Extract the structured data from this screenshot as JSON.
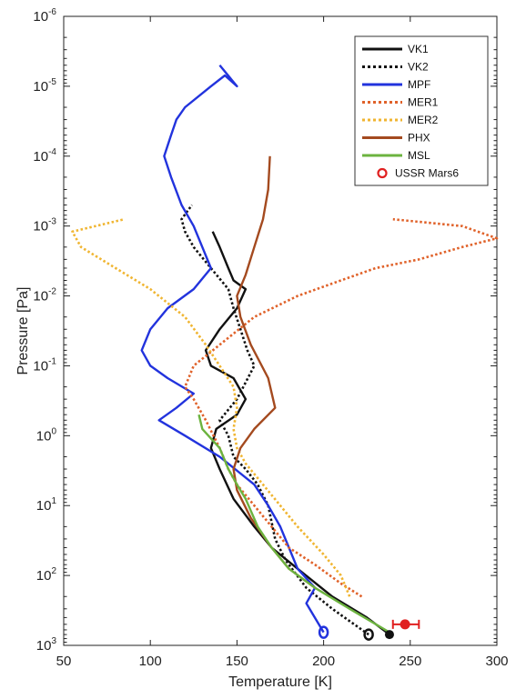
{
  "chart_data": {
    "type": "line",
    "title": "",
    "xlabel": "Temperature [K]",
    "ylabel": "Pressure [Pa]",
    "xlim": [
      50,
      300
    ],
    "ylim": [
      1e-06,
      1000.0
    ],
    "y_scale": "log",
    "y_reversed": true,
    "x_ticks": [
      "50",
      "100",
      "150",
      "200",
      "250",
      "300"
    ],
    "y_ticks": [
      {
        "base": "10",
        "exp": "-6"
      },
      {
        "base": "10",
        "exp": "-5"
      },
      {
        "base": "10",
        "exp": "-4"
      },
      {
        "base": "10",
        "exp": "-3"
      },
      {
        "base": "10",
        "exp": "-2"
      },
      {
        "base": "10",
        "exp": "-1"
      },
      {
        "base": "10",
        "exp": "0"
      },
      {
        "base": "10",
        "exp": "1"
      },
      {
        "base": "10",
        "exp": "2"
      },
      {
        "base": "10",
        "exp": "3"
      }
    ],
    "grid": false,
    "legend_position": "top-right",
    "series": [
      {
        "name": "VK1",
        "color": "#111111",
        "style": "solid",
        "points": [
          [
            238,
            700
          ],
          [
            225,
            400
          ],
          [
            205,
            200
          ],
          [
            185,
            80
          ],
          [
            170,
            40
          ],
          [
            160,
            20
          ],
          [
            148,
            8
          ],
          [
            140,
            3
          ],
          [
            135,
            1.5
          ],
          [
            138,
            0.8
          ],
          [
            150,
            0.5
          ],
          [
            155,
            0.3
          ],
          [
            148,
            0.15
          ],
          [
            135,
            0.1
          ],
          [
            132,
            0.06
          ],
          [
            140,
            0.03
          ],
          [
            150,
            0.015
          ],
          [
            155,
            0.008
          ],
          [
            148,
            0.006
          ],
          [
            145,
            0.004
          ],
          [
            140,
            0.002
          ],
          [
            136,
            0.0012
          ]
        ],
        "surface_point": [
          238,
          700
        ]
      },
      {
        "name": "VK2",
        "color": "#111111",
        "style": "dotted",
        "points": [
          [
            226,
            700
          ],
          [
            205,
            300
          ],
          [
            190,
            150
          ],
          [
            178,
            60
          ],
          [
            172,
            30
          ],
          [
            168,
            10
          ],
          [
            162,
            5
          ],
          [
            155,
            3
          ],
          [
            148,
            2
          ],
          [
            145,
            1
          ],
          [
            140,
            0.6
          ],
          [
            150,
            0.3
          ],
          [
            160,
            0.1
          ],
          [
            156,
            0.06
          ],
          [
            152,
            0.03
          ],
          [
            148,
            0.015
          ],
          [
            145,
            0.008
          ],
          [
            135,
            0.004
          ],
          [
            125,
            0.002
          ],
          [
            120,
            0.0012
          ],
          [
            118,
            0.0008
          ],
          [
            124,
            0.0005
          ]
        ],
        "surface_point": [
          226,
          700
        ]
      },
      {
        "name": "MPF",
        "color": "#2233dd",
        "style": "solid",
        "points": [
          [
            200,
            650
          ],
          [
            190,
            250
          ],
          [
            195,
            150
          ],
          [
            185,
            80
          ],
          [
            180,
            40
          ],
          [
            175,
            20
          ],
          [
            168,
            10
          ],
          [
            160,
            5
          ],
          [
            140,
            2
          ],
          [
            120,
            1
          ],
          [
            105,
            0.6
          ],
          [
            115,
            0.4
          ],
          [
            125,
            0.25
          ],
          [
            110,
            0.15
          ],
          [
            100,
            0.1
          ],
          [
            95,
            0.06
          ],
          [
            100,
            0.03
          ],
          [
            110,
            0.015
          ],
          [
            125,
            0.008
          ],
          [
            135,
            0.004
          ],
          [
            130,
            0.002
          ],
          [
            125,
            0.001
          ],
          [
            118,
            0.0005
          ],
          [
            112,
            0.0002
          ],
          [
            108,
            0.0001
          ],
          [
            112,
            5e-05
          ],
          [
            115,
            3e-05
          ],
          [
            120,
            2e-05
          ],
          [
            135,
            1e-05
          ],
          [
            143,
            7e-06
          ],
          [
            150,
            1e-05
          ],
          [
            140,
            5e-06
          ]
        ],
        "surface_point": [
          200,
          650
        ]
      },
      {
        "name": "MER1",
        "color": "#e0622a",
        "style": "dotted",
        "points": [
          [
            222,
            200
          ],
          [
            210,
            130
          ],
          [
            195,
            70
          ],
          [
            180,
            40
          ],
          [
            170,
            20
          ],
          [
            160,
            10
          ],
          [
            150,
            5
          ],
          [
            145,
            3
          ],
          [
            140,
            1.5
          ],
          [
            132,
            0.6
          ],
          [
            125,
            0.3
          ],
          [
            120,
            0.2
          ],
          [
            125,
            0.1
          ],
          [
            140,
            0.05
          ],
          [
            160,
            0.02
          ],
          [
            185,
            0.01
          ],
          [
            210,
            0.006
          ],
          [
            230,
            0.004
          ],
          [
            255,
            0.003
          ],
          [
            280,
            0.002
          ],
          [
            300,
            0.0015
          ],
          [
            280,
            0.001
          ],
          [
            240,
            0.0008
          ]
        ]
      },
      {
        "name": "MER2",
        "color": "#f0b531",
        "style": "dotted",
        "points": [
          [
            215,
            200
          ],
          [
            210,
            100
          ],
          [
            200,
            50
          ],
          [
            185,
            20
          ],
          [
            175,
            10
          ],
          [
            165,
            5
          ],
          [
            155,
            2.5
          ],
          [
            150,
            1.5
          ],
          [
            148,
            0.8
          ],
          [
            150,
            0.4
          ],
          [
            148,
            0.2
          ],
          [
            140,
            0.1
          ],
          [
            132,
            0.05
          ],
          [
            120,
            0.02
          ],
          [
            100,
            0.008
          ],
          [
            80,
            0.004
          ],
          [
            60,
            0.002
          ],
          [
            55,
            0.0012
          ],
          [
            85,
            0.0008
          ]
        ]
      },
      {
        "name": "PHX",
        "color": "#a44a1f",
        "style": "solid",
        "points": [
          [
            195,
            150
          ],
          [
            180,
            80
          ],
          [
            170,
            40
          ],
          [
            158,
            15
          ],
          [
            150,
            6
          ],
          [
            148,
            3
          ],
          [
            152,
            1.5
          ],
          [
            160,
            0.8
          ],
          [
            172,
            0.4
          ],
          [
            168,
            0.15
          ],
          [
            158,
            0.05
          ],
          [
            152,
            0.02
          ],
          [
            150,
            0.01
          ],
          [
            155,
            0.005
          ],
          [
            160,
            0.002
          ],
          [
            165,
            0.0008
          ],
          [
            168,
            0.0003
          ],
          [
            169,
            0.0001
          ]
        ]
      },
      {
        "name": "MSL",
        "color": "#6cb33f",
        "style": "solid",
        "points": [
          [
            238,
            650
          ],
          [
            215,
            300
          ],
          [
            195,
            150
          ],
          [
            180,
            80
          ],
          [
            170,
            40
          ],
          [
            162,
            20
          ],
          [
            155,
            8
          ],
          [
            150,
            5
          ],
          [
            145,
            3
          ],
          [
            140,
            1.5
          ],
          [
            130,
            0.8
          ],
          [
            128,
            0.5
          ]
        ]
      }
    ],
    "markers": [
      {
        "name": "USSR Mars6",
        "color": "#e02020",
        "value": [
          247,
          500
        ],
        "xerr": [
          240,
          255
        ]
      }
    ]
  }
}
